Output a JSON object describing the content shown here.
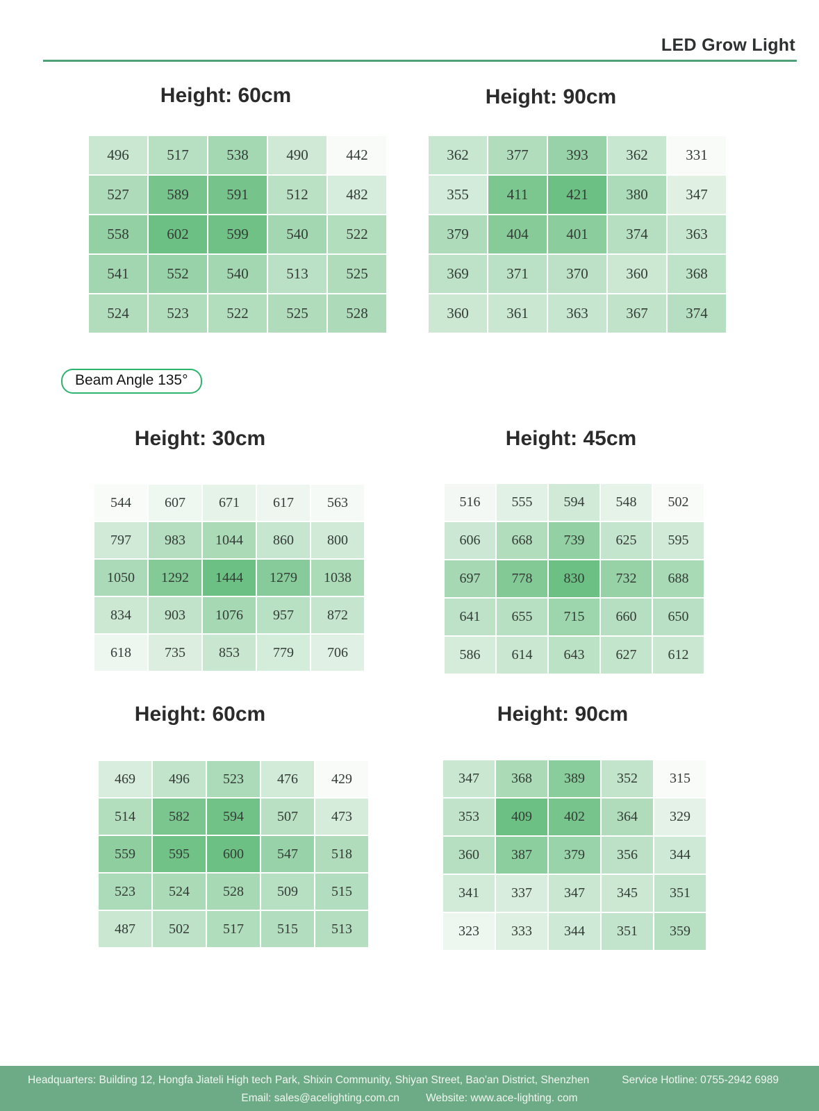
{
  "header": {
    "brand": "LED Grow Light"
  },
  "badge": {
    "label": "Beam Angle 135°"
  },
  "chart_data": [
    {
      "type": "heatmap",
      "title": "Height: 60cm",
      "values": [
        [
          496,
          517,
          538,
          490,
          442
        ],
        [
          527,
          589,
          591,
          512,
          482
        ],
        [
          558,
          602,
          599,
          540,
          522
        ],
        [
          541,
          552,
          540,
          513,
          525
        ],
        [
          524,
          523,
          522,
          525,
          528
        ]
      ]
    },
    {
      "type": "heatmap",
      "title": "Height: 90cm",
      "values": [
        [
          362,
          377,
          393,
          362,
          331
        ],
        [
          355,
          411,
          421,
          380,
          347
        ],
        [
          379,
          404,
          401,
          374,
          363
        ],
        [
          369,
          371,
          370,
          360,
          368
        ],
        [
          360,
          361,
          363,
          367,
          374
        ]
      ]
    },
    {
      "type": "heatmap",
      "title": "Height: 30cm",
      "values": [
        [
          544,
          607,
          671,
          617,
          563
        ],
        [
          797,
          983,
          1044,
          860,
          800
        ],
        [
          1050,
          1292,
          1444,
          1279,
          1038
        ],
        [
          834,
          903,
          1076,
          957,
          872
        ],
        [
          618,
          735,
          853,
          779,
          706
        ]
      ]
    },
    {
      "type": "heatmap",
      "title": "Height: 45cm",
      "values": [
        [
          516,
          555,
          594,
          548,
          502
        ],
        [
          606,
          668,
          739,
          625,
          595
        ],
        [
          697,
          778,
          830,
          732,
          688
        ],
        [
          641,
          655,
          715,
          660,
          650
        ],
        [
          586,
          614,
          643,
          627,
          612
        ]
      ]
    },
    {
      "type": "heatmap",
      "title": "Height: 60cm",
      "values": [
        [
          469,
          496,
          523,
          476,
          429
        ],
        [
          514,
          582,
          594,
          507,
          473
        ],
        [
          559,
          595,
          600,
          547,
          518
        ],
        [
          523,
          524,
          528,
          509,
          515
        ],
        [
          487,
          502,
          517,
          515,
          513
        ]
      ]
    },
    {
      "type": "heatmap",
      "title": "Height: 90cm",
      "values": [
        [
          347,
          368,
          389,
          352,
          315
        ],
        [
          353,
          409,
          402,
          364,
          329
        ],
        [
          360,
          387,
          379,
          356,
          344
        ],
        [
          341,
          337,
          347,
          345,
          351
        ],
        [
          323,
          333,
          344,
          351,
          359
        ]
      ]
    }
  ],
  "colors": {
    "accent_line": "#4fa077",
    "badge_border": "#2db36e",
    "cell_min": "#f9fbf9",
    "cell_max": "#6cc083",
    "footer_bg": "#6cab86",
    "footer_text": "#f0f6f1"
  },
  "footer": {
    "headquarters": "Headquarters: Building 12, Hongfa Jiateli High tech Park, Shixin Community, Shiyan Street, Bao'an District, Shenzhen",
    "hotline": "Service Hotline: 0755-2942 6989",
    "email": "Email: sales@acelighting.com.cn",
    "website": "Website: www.ace-lighting. com"
  }
}
